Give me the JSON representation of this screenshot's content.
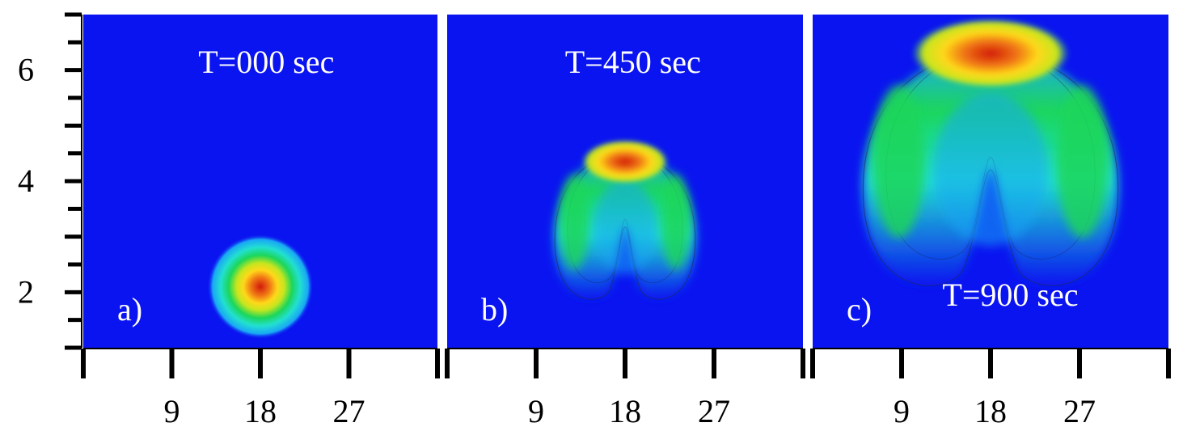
{
  "chart_data": {
    "type": "heatmap",
    "colors": {
      "background_field": "#0a14f0",
      "colormap": [
        "#0a14f0",
        "#19a7f5",
        "#22e0d0",
        "#1cd65a",
        "#c6e61e",
        "#ffd81a",
        "#f07814",
        "#d21a0c"
      ]
    },
    "y_axis": {
      "range": [
        1,
        7
      ],
      "tick_labels": [
        "2",
        "4",
        "6"
      ],
      "tick_values": [
        2,
        4,
        6
      ],
      "minor_ticks": [
        1,
        1.5,
        2,
        2.5,
        3,
        3.5,
        4,
        4.5,
        5,
        5.5,
        6,
        6.5,
        7
      ]
    },
    "panels": [
      {
        "label": "a)",
        "title": "T=000 sec",
        "xlim": [
          0,
          36
        ],
        "x_tick_labels": [
          "9",
          "18",
          "27"
        ],
        "x_tick_values": [
          9,
          18,
          27
        ],
        "feature": {
          "shape": "blob",
          "center": [
            18,
            2.1
          ],
          "radius": [
            4,
            0.7
          ]
        }
      },
      {
        "label": "b)",
        "title": "T=450 sec",
        "xlim": [
          0,
          36
        ],
        "x_tick_labels": [
          "9",
          "18",
          "27"
        ],
        "x_tick_values": [
          9,
          18,
          27
        ],
        "feature": {
          "shape": "cap",
          "center": [
            18,
            3.6
          ],
          "outer_half_width": 7.1,
          "top": 4.85,
          "bottom": 1.8,
          "peak": [
            18,
            4.35
          ]
        }
      },
      {
        "label": "c)",
        "title": "T=900 sec",
        "xlim": [
          0,
          36
        ],
        "x_tick_labels": [
          "9",
          "18",
          "27"
        ],
        "x_tick_values": [
          9,
          18,
          27
        ],
        "feature": {
          "shape": "cap",
          "center": [
            18,
            4.9
          ],
          "outer_half_width": 12.9,
          "top": 6.9,
          "bottom": 2.0,
          "peak": [
            18,
            6.3
          ]
        }
      }
    ]
  }
}
